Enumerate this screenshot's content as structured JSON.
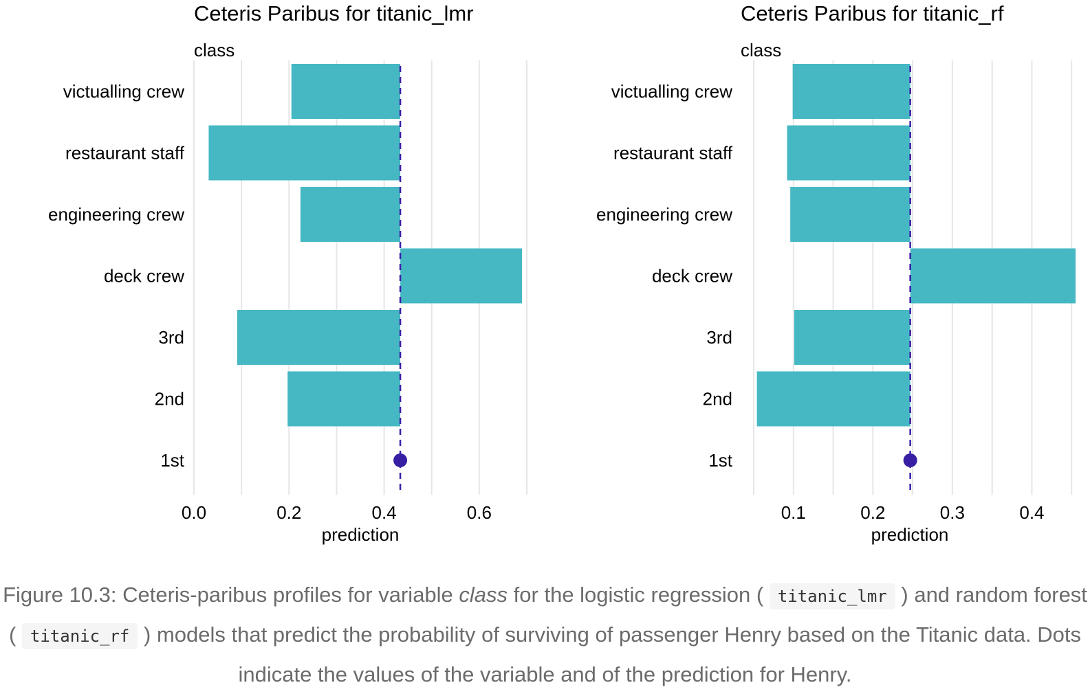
{
  "chart_data": [
    {
      "type": "bar",
      "title": "Ceteris Paribus for titanic_lmr",
      "variable_label": "class",
      "xlabel": "prediction",
      "categories": [
        "1st",
        "2nd",
        "3rd",
        "deck crew",
        "engineering crew",
        "restaurant staff",
        "victualling crew"
      ],
      "values": [
        0.434,
        0.197,
        0.091,
        0.69,
        0.224,
        0.031,
        0.205
      ],
      "baseline": 0.434,
      "observed_point": {
        "category": "1st",
        "value": 0.434
      },
      "xlim": [
        0.0,
        0.7
      ],
      "x_ticks": [
        0.0,
        0.2,
        0.4,
        0.6
      ],
      "x_tick_labels": [
        "0.0",
        "0.2",
        "0.4",
        "0.6"
      ],
      "grid": true,
      "orientation": "horizontal"
    },
    {
      "type": "bar",
      "title": "Ceteris Paribus for titanic_rf",
      "variable_label": "class",
      "xlabel": "prediction",
      "categories": [
        "1st",
        "2nd",
        "3rd",
        "deck crew",
        "engineering crew",
        "restaurant staff",
        "victualling crew"
      ],
      "values": [
        0.247,
        0.054,
        0.101,
        0.455,
        0.096,
        0.092,
        0.099
      ],
      "baseline": 0.247,
      "observed_point": {
        "category": "1st",
        "value": 0.247
      },
      "xlim": [
        0.05,
        0.455
      ],
      "x_ticks": [
        0.1,
        0.2,
        0.3,
        0.4
      ],
      "x_tick_labels": [
        "0.1",
        "0.2",
        "0.3",
        "0.4"
      ],
      "grid": true,
      "orientation": "horizontal"
    }
  ],
  "colors": {
    "bar": "#46b8c3",
    "baseline": "#3a1fa8",
    "point": "#371ea3",
    "grid": "#e6e6e6",
    "caption": "#6b6b6b"
  },
  "caption": {
    "part1": "Figure 10.3: Ceteris-paribus profiles for variable ",
    "variable": "class",
    "part2": " for the logistic regression ( ",
    "code1": "titanic_lmr",
    "part3": " ) and random forest ( ",
    "code2": "titanic_rf",
    "part4": " ) models that predict the probability of surviving of passenger Henry based on the Titanic data. Dots indicate the values of the variable and of the prediction for Henry."
  }
}
